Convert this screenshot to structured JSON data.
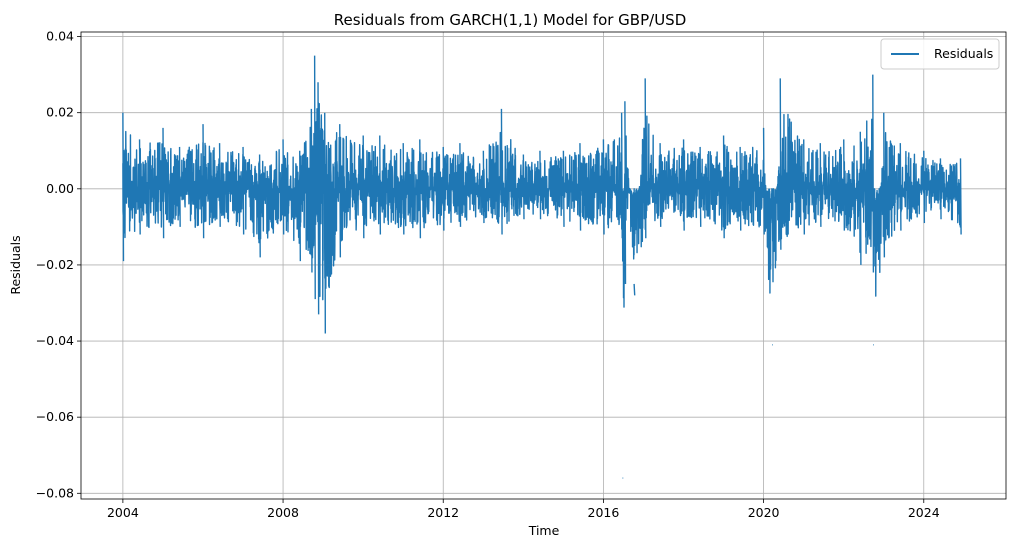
{
  "chart_data": {
    "type": "line",
    "title": "Residuals from GARCH(1,1) Model for GBP/USD",
    "xlabel": "Time",
    "ylabel": "Residuals",
    "x_ticks": [
      "2004",
      "2008",
      "2012",
      "2016",
      "2020",
      "2024"
    ],
    "y_ticks": [
      "−0.08",
      "−0.06",
      "−0.04",
      "−0.02",
      "0.00",
      "0.02",
      "0.04"
    ],
    "xlim": [
      "2002-12-15",
      "2026-01-20"
    ],
    "ylim": [
      -0.0815,
      0.0412
    ],
    "grid": true,
    "legend_position": "upper right",
    "series": [
      {
        "name": "Residuals",
        "color": "#1f77b4",
        "x": [
          "2004-01-01",
          "2004-06-01",
          "2005-01-01",
          "2005-06-01",
          "2006-01-01",
          "2006-06-01",
          "2007-01-01",
          "2007-06-01",
          "2008-01-01",
          "2008-06-01",
          "2008-09-15",
          "2008-10-15",
          "2008-11-15",
          "2009-01-15",
          "2009-06-01",
          "2010-01-01",
          "2010-06-01",
          "2011-01-01",
          "2011-06-01",
          "2012-01-01",
          "2012-06-01",
          "2013-01-01",
          "2013-06-15",
          "2014-01-01",
          "2014-06-01",
          "2015-01-01",
          "2015-06-01",
          "2016-01-01",
          "2016-06-15",
          "2016-06-24",
          "2016-07-15",
          "2016-10-07",
          "2017-01-16",
          "2017-06-01",
          "2018-01-01",
          "2018-06-01",
          "2019-01-01",
          "2019-06-01",
          "2020-01-01",
          "2020-03-19",
          "2020-06-01",
          "2021-01-01",
          "2021-06-01",
          "2022-01-01",
          "2022-06-01",
          "2022-09-23",
          "2022-09-28",
          "2023-01-01",
          "2023-06-01",
          "2024-01-01",
          "2024-06-01",
          "2024-12-01"
        ],
        "y": [
          0.02,
          0.013,
          0.016,
          0.011,
          0.017,
          0.012,
          0.011,
          0.009,
          0.013,
          0.01,
          0.021,
          0.035,
          0.028,
          0.02,
          0.017,
          0.014,
          0.014,
          0.012,
          0.013,
          0.011,
          0.012,
          0.01,
          0.021,
          0.009,
          0.01,
          0.01,
          0.012,
          0.013,
          0.02,
          -0.076,
          0.023,
          -0.025,
          0.029,
          0.012,
          0.013,
          0.011,
          0.014,
          0.011,
          0.016,
          -0.041,
          0.029,
          0.013,
          0.012,
          0.013,
          0.015,
          0.03,
          -0.041,
          0.02,
          0.012,
          0.01,
          0.008,
          0.008
        ],
        "y_low": [
          -0.019,
          -0.012,
          -0.013,
          -0.01,
          -0.013,
          -0.01,
          -0.012,
          -0.018,
          -0.012,
          -0.019,
          -0.022,
          -0.029,
          -0.033,
          -0.038,
          -0.018,
          -0.013,
          -0.012,
          -0.012,
          -0.013,
          -0.011,
          -0.01,
          -0.009,
          -0.012,
          -0.008,
          -0.008,
          -0.01,
          -0.011,
          -0.012,
          -0.013,
          -0.076,
          -0.025,
          -0.028,
          -0.013,
          -0.01,
          -0.011,
          -0.01,
          -0.013,
          -0.011,
          -0.012,
          -0.041,
          -0.016,
          -0.012,
          -0.01,
          -0.011,
          -0.02,
          -0.022,
          -0.041,
          -0.018,
          -0.011,
          -0.009,
          -0.008,
          -0.012
        ]
      }
    ]
  }
}
